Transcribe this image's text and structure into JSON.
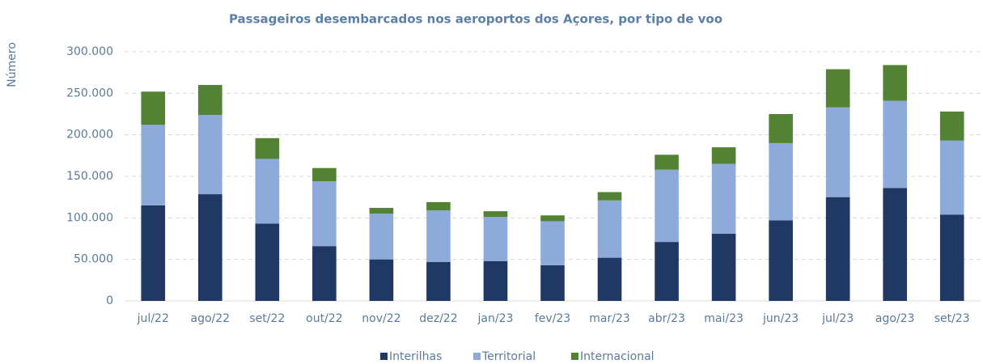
{
  "chart_data": {
    "type": "stacked_bar",
    "title": "Passageiros desembarcados nos aeroportos dos Açores, por tipo de voo",
    "y_label": "Número",
    "categories": [
      "jul/22",
      "ago/22",
      "set/22",
      "out/22",
      "nov/22",
      "dez/22",
      "jan/23",
      "fev/23",
      "mar/23",
      "abr/23",
      "mai/23",
      "jun/23",
      "jul/23",
      "ago/23",
      "set/23"
    ],
    "series": [
      {
        "name": "Interilhas",
        "color": "#1f3864",
        "values": [
          115000,
          128500,
          93000,
          66000,
          50000,
          47000,
          48000,
          43000,
          52000,
          71000,
          81000,
          97000,
          125000,
          136000,
          104000
        ]
      },
      {
        "name": "Territorial",
        "color": "#8eaadb",
        "values": [
          97000,
          95500,
          78000,
          78000,
          55000,
          62000,
          53000,
          53000,
          69000,
          87000,
          84000,
          93000,
          108000,
          105000,
          89000
        ]
      },
      {
        "name": "Internacional",
        "color": "#548235",
        "values": [
          40000,
          36000,
          25000,
          16000,
          7000,
          10000,
          7000,
          7000,
          10000,
          18000,
          20000,
          35000,
          46000,
          43000,
          35000
        ]
      }
    ],
    "ylim": [
      0,
      300000
    ],
    "yticks": [
      0,
      {
        "value": 50000,
        "label": "50.000"
      },
      {
        "value": 100000,
        "label": "100.000"
      },
      {
        "value": 150000,
        "label": "150.000"
      },
      {
        "value": 200000,
        "label": "200.000"
      },
      {
        "value": 250000,
        "label": "250.000"
      },
      {
        "value": 300000,
        "label": "300.000"
      }
    ],
    "grid": true,
    "legend": "bottom"
  }
}
